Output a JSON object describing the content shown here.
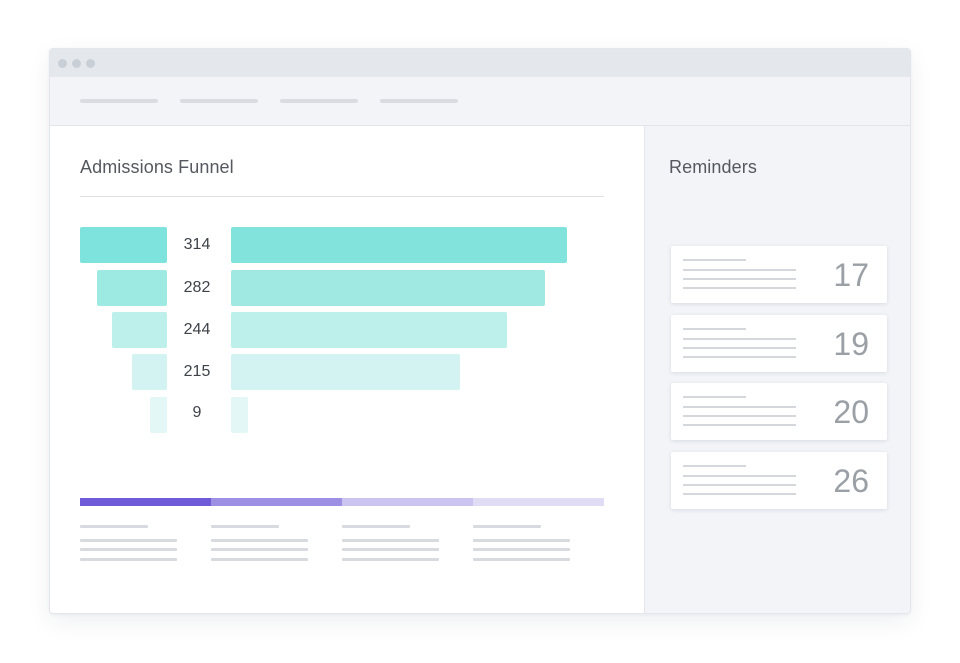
{
  "funnel": {
    "title": "Admissions Funnel",
    "stages": [
      {
        "value": "314",
        "left_color": "#7ee3dc",
        "right_color": "#82e3dd"
      },
      {
        "value": "282",
        "left_color": "#9deae3",
        "right_color": "#9fe9e2"
      },
      {
        "value": "244",
        "left_color": "#bdf0eb",
        "right_color": "#bdf0eb"
      },
      {
        "value": "215",
        "left_color": "#d2f3f1",
        "right_color": "#d2f3f1"
      },
      {
        "value": "9",
        "left_color": "#e2f7f6",
        "right_color": "#e2f7f6"
      }
    ]
  },
  "progress": {
    "segment_colors": [
      "#6f5bd8",
      "#9d90e4",
      "#ccc4f0",
      "#e0dcf6"
    ]
  },
  "reminders": {
    "title": "Reminders",
    "cards": [
      {
        "count": "17"
      },
      {
        "count": "19"
      },
      {
        "count": "20"
      },
      {
        "count": "26"
      }
    ]
  }
}
